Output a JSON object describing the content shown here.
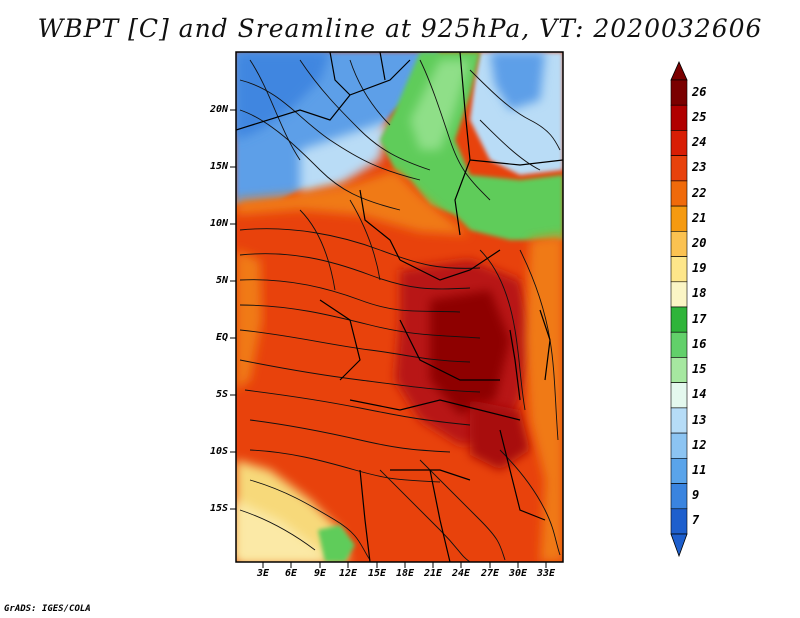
{
  "title": "WBPT [C] and Sreamline at 925hPa, VT: 2020032606",
  "credit": "GrADS: IGES/COLA",
  "lat_labels": [
    "20N",
    "15N",
    "10N",
    "5N",
    "EQ",
    "5S",
    "10S",
    "15S"
  ],
  "lon_labels": [
    "3E",
    "6E",
    "9E",
    "12E",
    "15E",
    "18E",
    "21E",
    "24E",
    "27E",
    "30E",
    "33E"
  ],
  "colorbar": {
    "levels": [
      "26",
      "25",
      "24",
      "23",
      "22",
      "21",
      "20",
      "19",
      "18",
      "17",
      "16",
      "15",
      "14",
      "13",
      "12",
      "11",
      "9",
      "7"
    ],
    "colors": [
      "#7a0000",
      "#b00000",
      "#d81e05",
      "#e8420c",
      "#f06a0a",
      "#f59a10",
      "#fbc251",
      "#fde68a",
      "#fbf5c5",
      "#2fb43a",
      "#62d06a",
      "#a6e8a0",
      "#e4f8ee",
      "#b6dcf7",
      "#8cc4f2",
      "#5aa4ea",
      "#3a84df",
      "#1e5fcd"
    ]
  },
  "colors": {
    "north_blue": "#5d9fe8",
    "north_pale_blue": "#b9dcf6",
    "sahel_green": "#5fcc5a",
    "warm_red": "#d83a12",
    "hot_core": "#a80808",
    "orange_edge": "#f07a12",
    "south_yellow": "#f7d97a"
  }
}
